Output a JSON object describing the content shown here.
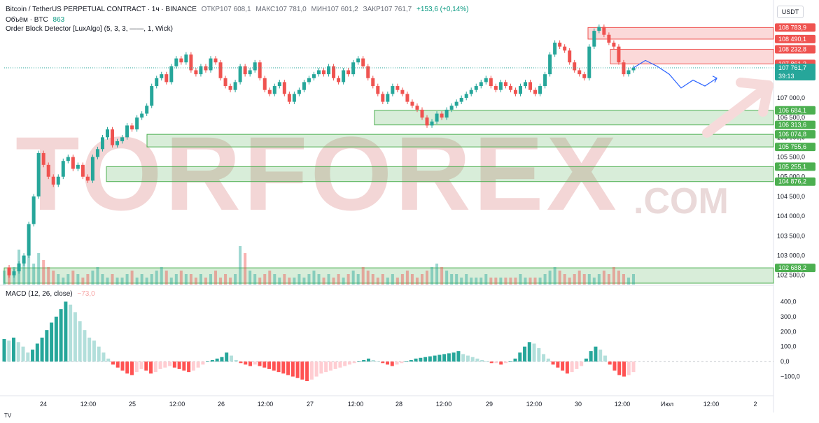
{
  "header": {
    "symbol": "Bitcoin / TetherUS PERPETUAL CONTRACT · 1ч · BINANCE",
    "open": "ОТКР107 608,1",
    "high": "МАКС107 781,0",
    "low": "МИН107 601,2",
    "close": "ЗАКР107 761,7",
    "change": "+153,6 (+0,14%)",
    "volume_label": "Объём · BTC",
    "volume_value": "863",
    "indicator": "Order Block Detector [LuxAlgo] (5, 3, 3, ——, 1, Wick)",
    "currency": "USDT"
  },
  "macd": {
    "label": "MACD (12, 26, close)",
    "value": "−73,0"
  },
  "footer": {
    "logo_text": "TV"
  },
  "watermark": {
    "main": "TORFOREX",
    "suffix": ".COM"
  },
  "colors": {
    "up": "#26a69a",
    "down": "#ef5350",
    "bull_zone": "#4caf50",
    "bear_zone": "#ef5350",
    "projection": "#2962ff",
    "current": "#26a69a"
  },
  "chart_data": [
    {
      "type": "line",
      "name": "price",
      "ylim": [
        102300,
        108950
      ],
      "price_axis": [
        "107 000,0",
        "106 500,0",
        "106 000,0",
        "105 500,0",
        "105 000,0",
        "104 500,0",
        "104 000,0",
        "103 500,0",
        "103 000,0",
        "102 500,0"
      ],
      "x_labels": [
        "24",
        "12:00",
        "25",
        "12:00",
        "26",
        "12:00",
        "27",
        "12:00",
        "28",
        "12:00",
        "29",
        "12:00",
        "30",
        "12:00",
        "Июл",
        "12:00",
        "2"
      ],
      "close_path_hourly": [
        102700,
        102500,
        102600,
        102800,
        103000,
        103800,
        104500,
        105600,
        105300,
        105000,
        104800,
        105000,
        105400,
        105500,
        105200,
        105300,
        105000,
        104900,
        105500,
        105700,
        106000,
        106200,
        105800,
        105900,
        106000,
        106300,
        106200,
        106500,
        106600,
        106800,
        107300,
        107500,
        107600,
        107400,
        107800,
        108000,
        107900,
        108100,
        107700,
        107600,
        107800,
        107700,
        108000,
        107900,
        107500,
        107300,
        107200,
        107400,
        107800,
        107600,
        107700,
        107900,
        107500,
        107200,
        107100,
        107300,
        107400,
        107100,
        106900,
        107100,
        107200,
        107400,
        107500,
        107600,
        107700,
        107600,
        107800,
        107500,
        107400,
        107700,
        107600,
        107900,
        108000,
        107800,
        107500,
        107300,
        107100,
        106900,
        107100,
        107300,
        107200,
        107100,
        106900,
        106800,
        106700,
        106500,
        106300,
        106400,
        106600,
        106500,
        106700,
        106800,
        106900,
        107000,
        107100,
        107200,
        107300,
        107400,
        107500,
        107300,
        107200,
        107400,
        107300,
        107200,
        107100,
        107300,
        107400,
        107200,
        107100,
        107300,
        107600,
        108100,
        108400,
        108300,
        108200,
        107900,
        107700,
        107600,
        107500,
        108300,
        108700,
        108800,
        108600,
        108400,
        108300,
        107900,
        107600,
        107700,
        107761.7
      ],
      "current_price": "107 761,7",
      "countdown": "39:13",
      "order_blocks_bearish": [
        {
          "top": 108783.9,
          "bottom": 108490.1,
          "top_label": "108 783,9",
          "bottom_label": "108 490,1"
        },
        {
          "top": 108232.8,
          "bottom": 107861.3,
          "top_label": "108 232,8",
          "bottom_label": "107 861,3"
        }
      ],
      "order_blocks_bullish": [
        {
          "top": 106684.1,
          "bottom": 106313.6,
          "top_label": "106 684,1",
          "bottom_label": "106 313,6"
        },
        {
          "top": 106074.8,
          "bottom": 105755.6,
          "top_label": "106 074,8",
          "bottom_label": "105 755,6"
        },
        {
          "top": 105255.1,
          "bottom": 104876.2,
          "top_label": "105 255,1",
          "bottom_label": "104 876,2"
        },
        {
          "top": 102688.2,
          "bottom": 102300,
          "top_label": "102 688,2",
          "bottom_label": ""
        }
      ],
      "projection_path": [
        107761.7,
        107950,
        107800,
        107600,
        107250,
        107450,
        107300,
        107500
      ]
    },
    {
      "type": "bar",
      "name": "MACD",
      "ylim": [
        -130,
        430
      ],
      "y_axis": [
        "400,0",
        "300,0",
        "200,0",
        "100,0",
        "0,0",
        "−100,0"
      ],
      "values": [
        150,
        140,
        160,
        130,
        100,
        60,
        80,
        120,
        160,
        210,
        260,
        300,
        350,
        400,
        380,
        330,
        270,
        210,
        160,
        140,
        100,
        60,
        20,
        -20,
        -40,
        -60,
        -80,
        -90,
        -70,
        -50,
        -60,
        -80,
        -70,
        -50,
        -40,
        -30,
        -40,
        -50,
        -60,
        -70,
        -60,
        -40,
        -20,
        0,
        10,
        20,
        30,
        60,
        40,
        10,
        -10,
        -20,
        -30,
        -20,
        -30,
        -40,
        -50,
        -60,
        -70,
        -80,
        -90,
        -100,
        -110,
        -120,
        -130,
        -120,
        -100,
        -80,
        -70,
        -60,
        -50,
        -40,
        -30,
        -20,
        -10,
        0,
        10,
        20,
        10,
        0,
        -10,
        -20,
        -30,
        -20,
        -10,
        0,
        10,
        20,
        25,
        30,
        35,
        40,
        45,
        50,
        55,
        60,
        70,
        50,
        40,
        30,
        20,
        10,
        0,
        -10,
        -10,
        -20,
        -10,
        0,
        20,
        60,
        100,
        130,
        120,
        90,
        50,
        20,
        -20,
        -40,
        -60,
        -80,
        -70,
        -50,
        -30,
        20,
        70,
        100,
        80,
        40,
        -20,
        -60,
        -90,
        -100,
        -90,
        -70
      ]
    },
    {
      "type": "bar",
      "name": "volume",
      "values": [
        4,
        3,
        5,
        10,
        8,
        12,
        6,
        9,
        7,
        5,
        4,
        3,
        2,
        3,
        4,
        3,
        2,
        3,
        4,
        5,
        3,
        2,
        3,
        2,
        2,
        3,
        4,
        2,
        3,
        2,
        3,
        4,
        5,
        4,
        2,
        3,
        4,
        3,
        3,
        2,
        3,
        2,
        3,
        4,
        2,
        3,
        2,
        3,
        11,
        9,
        4,
        3,
        2,
        3,
        4,
        3,
        2,
        3,
        2,
        2,
        3,
        2,
        3,
        4,
        3,
        2,
        3,
        2,
        3,
        2,
        3,
        4,
        3,
        5,
        4,
        3,
        2,
        3,
        2,
        3,
        2,
        3,
        4,
        3,
        2,
        3,
        4,
        5,
        6,
        5,
        4,
        3,
        3,
        2,
        3,
        2,
        2,
        2,
        3,
        2,
        2,
        2,
        2,
        2,
        2,
        3,
        2,
        2,
        2,
        2,
        3,
        4,
        5,
        4,
        3,
        2,
        3,
        4,
        3,
        3,
        2,
        3,
        4,
        3,
        5,
        4,
        3,
        2,
        3
      ]
    }
  ]
}
